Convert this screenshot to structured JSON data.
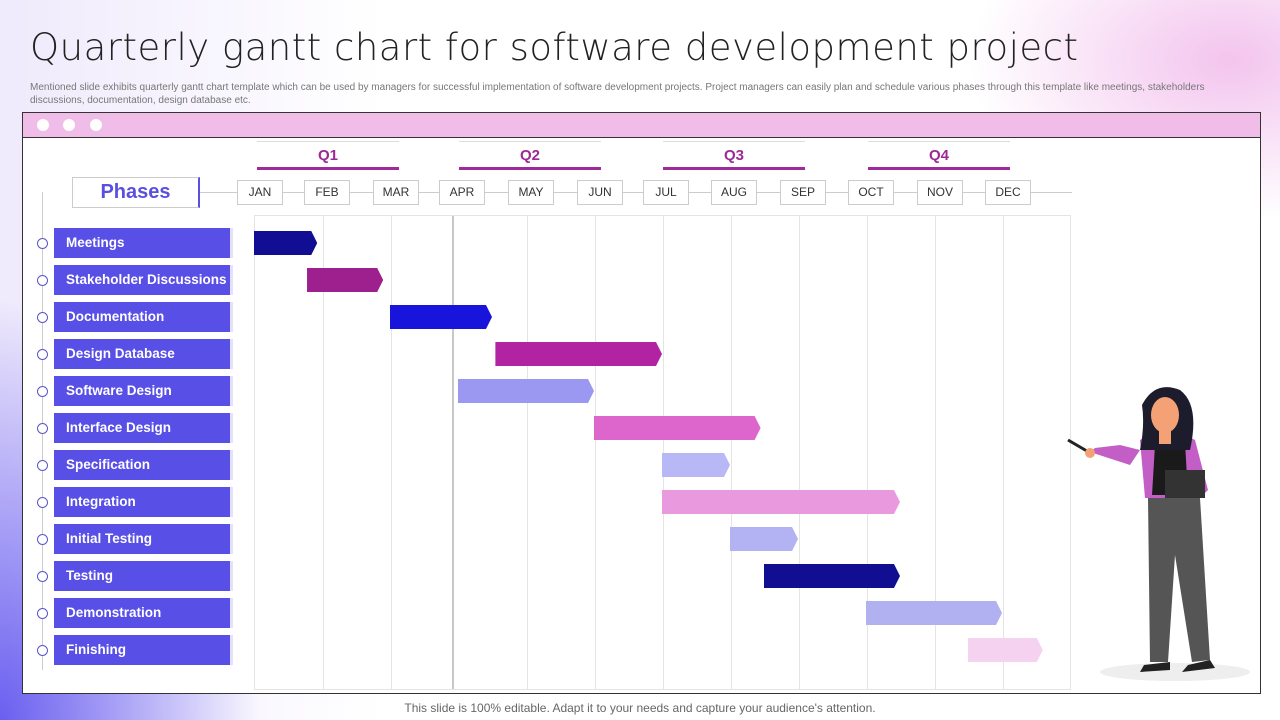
{
  "title": "Quarterly gantt chart for software development project",
  "subtitle": "Mentioned slide exhibits quarterly gantt chart template which can be used by managers for successful implementation of software development projects. Project managers can easily plan and schedule various phases through this template like meetings, stakeholders discussions, documentation, design database etc.",
  "footer": "This slide is 100% editable. Adapt it to your needs and capture your audience's attention.",
  "chart_data": {
    "type": "gantt",
    "phases_label": "Phases",
    "quarters": [
      "Q1",
      "Q2",
      "Q3",
      "Q4"
    ],
    "months": [
      "JAN",
      "FEB",
      "MAR",
      "APR",
      "MAY",
      "JUN",
      "JUL",
      "AUG",
      "SEP",
      "OCT",
      "NOV",
      "DEC"
    ],
    "x_unit": "months from start of January",
    "tasks": [
      {
        "name": "Meetings",
        "start": 0,
        "end": 0.93,
        "color": "#120e93"
      },
      {
        "name": "Stakeholder Discussions",
        "start": 0.78,
        "end": 1.9,
        "color": "#9e208f"
      },
      {
        "name": "Documentation",
        "start": 2.0,
        "end": 3.5,
        "color": "#1914dc"
      },
      {
        "name": "Design Database",
        "start": 3.55,
        "end": 6.0,
        "color": "#b223a1"
      },
      {
        "name": "Software Design",
        "start": 3.0,
        "end": 5.0,
        "color": "#9b98f2"
      },
      {
        "name": "Interface Design",
        "start": 5.0,
        "end": 7.45,
        "color": "#dd66cc"
      },
      {
        "name": "Specification",
        "start": 6.0,
        "end": 7.0,
        "color": "#b8b8f6"
      },
      {
        "name": "Integration",
        "start": 6.0,
        "end": 9.5,
        "color": "#e99ade"
      },
      {
        "name": "Initial Testing",
        "start": 7.0,
        "end": 8.0,
        "color": "#b3b3f3"
      },
      {
        "name": "Testing",
        "start": 7.5,
        "end": 9.5,
        "color": "#110e91"
      },
      {
        "name": "Demonstration",
        "start": 9.0,
        "end": 11.0,
        "color": "#b1b1f1"
      },
      {
        "name": "Finishing",
        "start": 10.5,
        "end": 11.6,
        "color": "#f5d2f0"
      }
    ]
  }
}
